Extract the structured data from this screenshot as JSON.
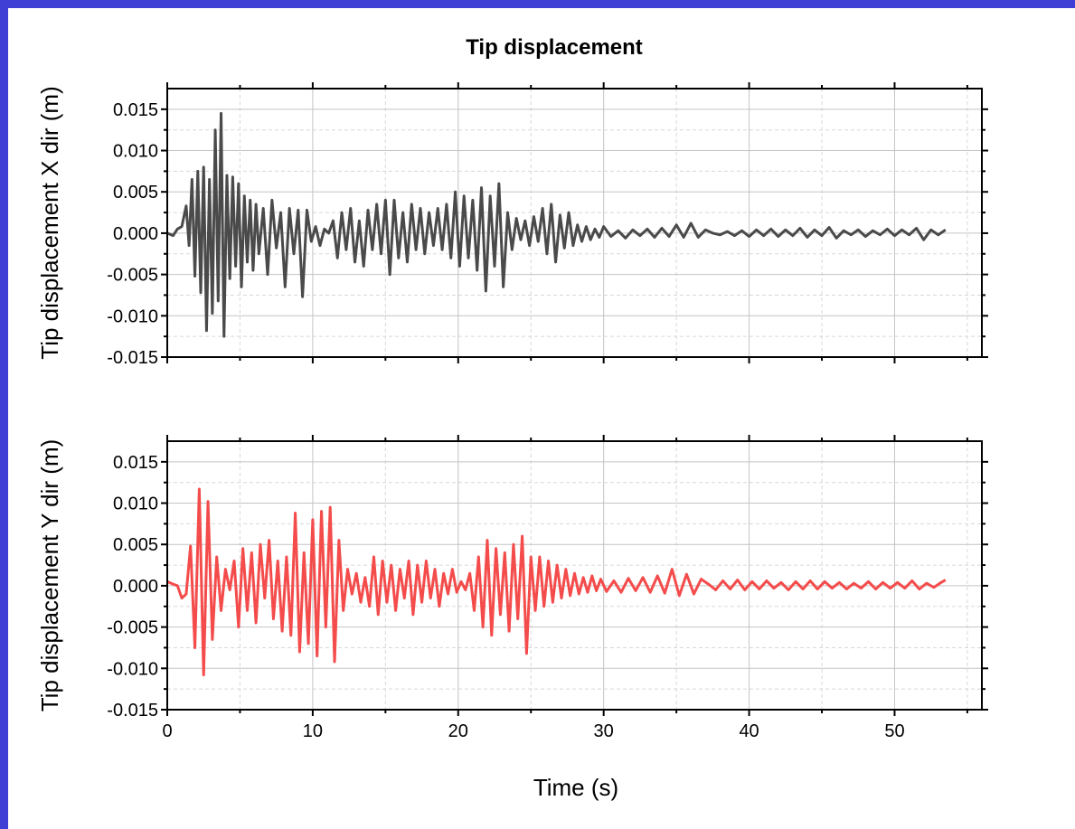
{
  "chart_data": {
    "type": "line",
    "title": "Tip displacement",
    "xlabel": "Time (s)",
    "xlim": [
      0,
      56
    ],
    "xticks": [
      0,
      10,
      20,
      30,
      40,
      50
    ],
    "grid": true,
    "panels": [
      {
        "ylabel": "Tip displacement X dir (m)",
        "ylim": [
          -0.015,
          0.0175
        ],
        "yticks": [
          -0.015,
          -0.01,
          -0.005,
          0.0,
          0.005,
          0.01,
          0.015
        ],
        "ytick_labels": [
          "-0.015",
          "-0.010",
          "-0.005",
          "0.000",
          "0.005",
          "0.010",
          "0.015"
        ],
        "series": [
          {
            "color": "#4a4a4a",
            "x": [
              0,
              0.4,
              0.7,
              1.0,
              1.3,
              1.5,
              1.7,
              1.9,
              2.1,
              2.3,
              2.5,
              2.7,
              2.9,
              3.1,
              3.3,
              3.5,
              3.7,
              3.9,
              4.1,
              4.3,
              4.5,
              4.7,
              4.9,
              5.1,
              5.3,
              5.5,
              5.7,
              5.9,
              6.1,
              6.3,
              6.6,
              6.9,
              7.2,
              7.5,
              7.8,
              8.1,
              8.4,
              8.7,
              9.0,
              9.3,
              9.6,
              9.9,
              10.2,
              10.5,
              10.8,
              11.1,
              11.4,
              11.7,
              12.0,
              12.3,
              12.6,
              12.9,
              13.2,
              13.5,
              13.8,
              14.1,
              14.4,
              14.7,
              15.0,
              15.3,
              15.6,
              15.9,
              16.2,
              16.5,
              16.8,
              17.1,
              17.4,
              17.7,
              18.0,
              18.3,
              18.6,
              18.9,
              19.2,
              19.5,
              19.8,
              20.1,
              20.4,
              20.7,
              21.0,
              21.3,
              21.6,
              21.9,
              22.2,
              22.5,
              22.8,
              23.1,
              23.4,
              23.7,
              24.0,
              24.3,
              24.6,
              24.9,
              25.2,
              25.5,
              25.8,
              26.1,
              26.4,
              26.7,
              27.0,
              27.3,
              27.6,
              27.9,
              28.2,
              28.5,
              28.8,
              29.1,
              29.4,
              29.7,
              30.0,
              30.5,
              31.0,
              31.5,
              32.0,
              32.5,
              33.0,
              33.5,
              34.0,
              34.5,
              35.0,
              35.5,
              36.0,
              36.5,
              37.0,
              37.5,
              38.0,
              38.5,
              39.0,
              39.5,
              40.0,
              40.5,
              41.0,
              41.5,
              42.0,
              42.5,
              43.0,
              43.5,
              44.0,
              44.5,
              45.0,
              45.5,
              46.0,
              46.5,
              47.0,
              47.5,
              48.0,
              48.5,
              49.0,
              49.5,
              50.0,
              50.5,
              51.0,
              51.5,
              52.0,
              52.5,
              53.0,
              53.5
            ],
            "y": [
              0.0,
              -0.0003,
              0.0005,
              0.0008,
              0.0033,
              -0.0015,
              0.0065,
              -0.0052,
              0.0075,
              -0.0072,
              0.008,
              -0.0118,
              0.0065,
              -0.0097,
              0.0125,
              -0.0082,
              0.0145,
              -0.0125,
              0.007,
              -0.0055,
              0.0068,
              -0.004,
              0.006,
              -0.0065,
              0.0045,
              -0.0035,
              0.004,
              -0.0045,
              0.0035,
              -0.0025,
              0.003,
              -0.005,
              0.004,
              -0.0018,
              0.0025,
              -0.0065,
              0.003,
              -0.0025,
              0.0028,
              -0.0077,
              0.0028,
              -0.001,
              0.0008,
              -0.0015,
              0.0005,
              0.0,
              0.0015,
              -0.003,
              0.0025,
              -0.002,
              0.003,
              -0.0035,
              0.0015,
              -0.004,
              0.0028,
              -0.002,
              0.0035,
              -0.0025,
              0.004,
              -0.005,
              0.004,
              -0.003,
              0.0025,
              -0.0035,
              0.0035,
              -0.002,
              0.003,
              -0.0025,
              0.0025,
              -0.0015,
              0.003,
              -0.002,
              0.0035,
              -0.003,
              0.005,
              -0.004,
              0.0045,
              -0.003,
              0.004,
              -0.0045,
              0.0055,
              -0.007,
              0.0045,
              -0.004,
              0.006,
              -0.0065,
              0.0025,
              -0.002,
              0.0018,
              -0.0008,
              0.0015,
              -0.0015,
              0.002,
              -0.001,
              0.003,
              -0.0025,
              0.0035,
              -0.0035,
              0.0022,
              -0.0018,
              0.0025,
              -0.0015,
              0.001,
              -0.001,
              0.0008,
              -0.0008,
              0.0005,
              -0.0005,
              0.0008,
              -0.0004,
              0.0003,
              -0.0006,
              0.0004,
              -0.0003,
              0.0005,
              -0.0005,
              0.0006,
              -0.0004,
              0.001,
              -0.0005,
              0.0012,
              -0.0005,
              0.0004,
              0.0,
              -0.0002,
              0.0002,
              -0.0003,
              0.0003,
              -0.0004,
              0.0004,
              -0.0003,
              0.0005,
              -0.0004,
              0.0004,
              -0.0003,
              0.0006,
              -0.0005,
              0.0004,
              -0.0003,
              0.0007,
              -0.0006,
              0.0003,
              -0.0002,
              0.0004,
              -0.0004,
              0.0003,
              -0.0002,
              0.0005,
              -0.0003,
              0.0004,
              -0.0002,
              0.0006,
              -0.0008,
              0.0004,
              -0.0002,
              0.0004
            ]
          }
        ]
      },
      {
        "ylabel": "Tip displacement Y dir (m)",
        "ylim": [
          -0.015,
          0.0175
        ],
        "yticks": [
          -0.015,
          -0.01,
          -0.005,
          0.0,
          0.005,
          0.01,
          0.015
        ],
        "ytick_labels": [
          "-0.015",
          "-0.010",
          "-0.005",
          "0.000",
          "0.005",
          "0.010",
          "0.015"
        ],
        "series": [
          {
            "color": "#f44b4b",
            "x": [
              0,
              0.4,
              0.7,
              1.0,
              1.3,
              1.6,
              1.9,
              2.2,
              2.5,
              2.8,
              3.1,
              3.4,
              3.7,
              4.0,
              4.3,
              4.6,
              4.9,
              5.2,
              5.5,
              5.8,
              6.1,
              6.4,
              6.7,
              7.0,
              7.3,
              7.6,
              7.9,
              8.2,
              8.5,
              8.8,
              9.1,
              9.4,
              9.7,
              10.0,
              10.3,
              10.6,
              10.9,
              11.2,
              11.5,
              11.8,
              12.1,
              12.4,
              12.7,
              13.0,
              13.3,
              13.6,
              13.9,
              14.2,
              14.5,
              14.8,
              15.1,
              15.4,
              15.7,
              16.0,
              16.3,
              16.6,
              16.9,
              17.2,
              17.5,
              17.8,
              18.1,
              18.4,
              18.7,
              19.0,
              19.3,
              19.6,
              19.9,
              20.2,
              20.5,
              20.8,
              21.1,
              21.4,
              21.7,
              22.0,
              22.3,
              22.6,
              22.9,
              23.2,
              23.5,
              23.8,
              24.1,
              24.4,
              24.7,
              25.0,
              25.3,
              25.6,
              25.9,
              26.2,
              26.5,
              26.8,
              27.1,
              27.4,
              27.7,
              28.0,
              28.3,
              28.6,
              28.9,
              29.2,
              29.5,
              29.8,
              30.2,
              30.7,
              31.2,
              31.7,
              32.2,
              32.7,
              33.2,
              33.7,
              34.2,
              34.7,
              35.2,
              35.7,
              36.2,
              36.7,
              37.2,
              37.7,
              38.2,
              38.7,
              39.2,
              39.7,
              40.2,
              40.7,
              41.2,
              41.7,
              42.2,
              42.7,
              43.2,
              43.7,
              44.2,
              44.7,
              45.2,
              45.7,
              46.2,
              46.7,
              47.2,
              47.7,
              48.2,
              48.7,
              49.2,
              49.7,
              50.2,
              50.7,
              51.2,
              51.7,
              52.2,
              52.7,
              53.2,
              53.5
            ],
            "y": [
              0.0005,
              0.0002,
              0.0,
              -0.0015,
              -0.001,
              0.0048,
              -0.0075,
              0.0117,
              -0.0108,
              0.0102,
              -0.0065,
              0.0035,
              -0.003,
              0.002,
              -0.0005,
              0.003,
              -0.005,
              0.0045,
              -0.003,
              0.004,
              -0.0045,
              0.005,
              -0.0015,
              0.0055,
              -0.004,
              0.003,
              -0.0055,
              0.0035,
              -0.006,
              0.0088,
              -0.008,
              0.004,
              -0.007,
              0.008,
              -0.0085,
              0.009,
              -0.005,
              0.0095,
              -0.0092,
              0.0055,
              -0.003,
              0.002,
              -0.001,
              0.0015,
              -0.002,
              0.001,
              -0.0025,
              0.0035,
              -0.0035,
              0.003,
              -0.002,
              0.0025,
              -0.003,
              0.002,
              -0.0015,
              0.003,
              -0.0035,
              0.0025,
              -0.002,
              0.003,
              -0.0015,
              0.002,
              -0.0025,
              0.0015,
              -0.001,
              0.002,
              -0.0008,
              0.0005,
              -0.0005,
              0.0015,
              -0.003,
              0.0035,
              -0.005,
              0.0055,
              -0.006,
              0.0045,
              -0.0035,
              0.004,
              -0.0055,
              0.005,
              -0.004,
              0.006,
              -0.0082,
              0.0035,
              -0.003,
              0.0035,
              -0.0025,
              0.003,
              -0.002,
              0.0025,
              -0.0015,
              0.002,
              -0.0012,
              0.0015,
              -0.001,
              0.001,
              -0.0008,
              0.0012,
              -0.0006,
              0.0008,
              -0.0007,
              0.0006,
              -0.0008,
              0.0009,
              -0.0006,
              0.001,
              -0.0008,
              0.0012,
              -0.0009,
              0.002,
              -0.0012,
              0.0014,
              -0.001,
              0.0008,
              0.0002,
              -0.0005,
              0.0006,
              -0.0004,
              0.0007,
              -0.0005,
              0.0005,
              -0.0004,
              0.0006,
              -0.0003,
              0.0004,
              -0.0005,
              0.0005,
              -0.0004,
              0.0006,
              -0.0004,
              0.0005,
              -0.0003,
              0.0004,
              -0.0004,
              0.0003,
              -0.0003,
              0.0005,
              -0.0004,
              0.0004,
              -0.0003,
              0.0004,
              -0.0003,
              0.0006,
              -0.0004,
              0.0003,
              -0.0002,
              0.0004,
              0.0007
            ]
          }
        ]
      }
    ]
  }
}
